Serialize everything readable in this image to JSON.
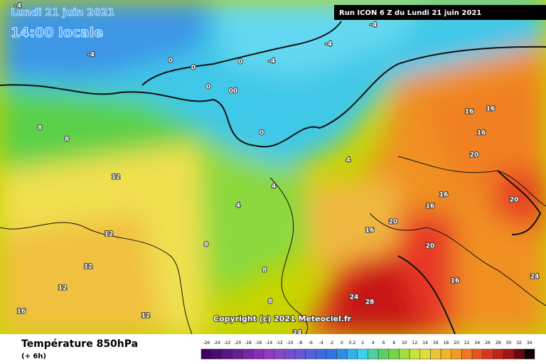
{
  "header": {
    "date": "Lundi 21 juin 2021",
    "time": "14:00 locale",
    "run": "Run ICON 6 Z du Lundi 21 juin 2021"
  },
  "footer": {
    "title": "Température 850hPa",
    "step": "(+ 6h)",
    "copyright": "Copyright (c) 2021 Meteociel.fr"
  },
  "scale": {
    "labels": [
      "-26",
      "-24",
      "-22",
      "-20",
      "-18",
      "-16",
      "-14",
      "-12",
      "-10",
      "-8",
      "-6",
      "-4",
      "-2",
      "0",
      "0.2",
      "2",
      "4",
      "6",
      "8",
      "10",
      "12",
      "14",
      "16",
      "18",
      "20",
      "22",
      "24",
      "26",
      "28",
      "30",
      "32",
      "34"
    ]
  },
  "contour_labels": [
    "-4",
    "-4",
    "0",
    "0",
    "-4",
    "-4",
    "-4",
    "0",
    "0",
    "00",
    "0",
    "8",
    "8",
    "12",
    "16",
    "16",
    "16",
    "16",
    "20",
    "16",
    "20",
    "4",
    "4",
    "4",
    "12",
    "8",
    "16",
    "20",
    "20",
    "24",
    "24",
    "28",
    "12",
    "8",
    "16",
    "12",
    "24",
    "12",
    "8",
    "16"
  ]
}
